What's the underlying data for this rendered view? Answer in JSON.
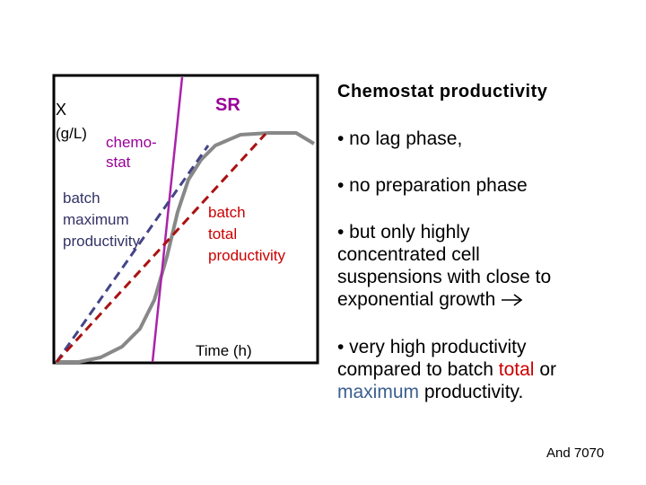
{
  "diagram": {
    "y_label": "X",
    "y_unit": "(g/L)",
    "x_label": "Time (h)",
    "sr_label": "SR",
    "chemostat_label": [
      "chemo-",
      "stat"
    ],
    "batch_max_label": [
      "batch",
      "maximum",
      "productivity"
    ],
    "batch_total_label": [
      "batch",
      "total",
      "productivity"
    ],
    "colors": {
      "frame": "#000000",
      "growth_curve": "#888888",
      "chemostat_line": "#aa22aa",
      "batch_max_line": "#444488",
      "batch_total_line": "#aa1111"
    }
  },
  "panel": {
    "title": "Chemostat productivity",
    "bullet_1": "• no lag phase,",
    "bullet_2": "• no preparation phase",
    "bullet_3": [
      "• but only highly",
      "concentrated cell",
      "suspensions with close to",
      "exponential growth"
    ],
    "bullet_4_line1": "• very high  productivity",
    "bullet_4_line2_pre": "compared to batch ",
    "bullet_4_line2_hi": "total",
    "bullet_4_line2_post": " or",
    "bullet_4_line3_hi": "maximum",
    "bullet_4_line3_post": " productivity.",
    "arrow_icon": "right-arrow-icon"
  },
  "footer": {
    "credit": "And 7070"
  }
}
